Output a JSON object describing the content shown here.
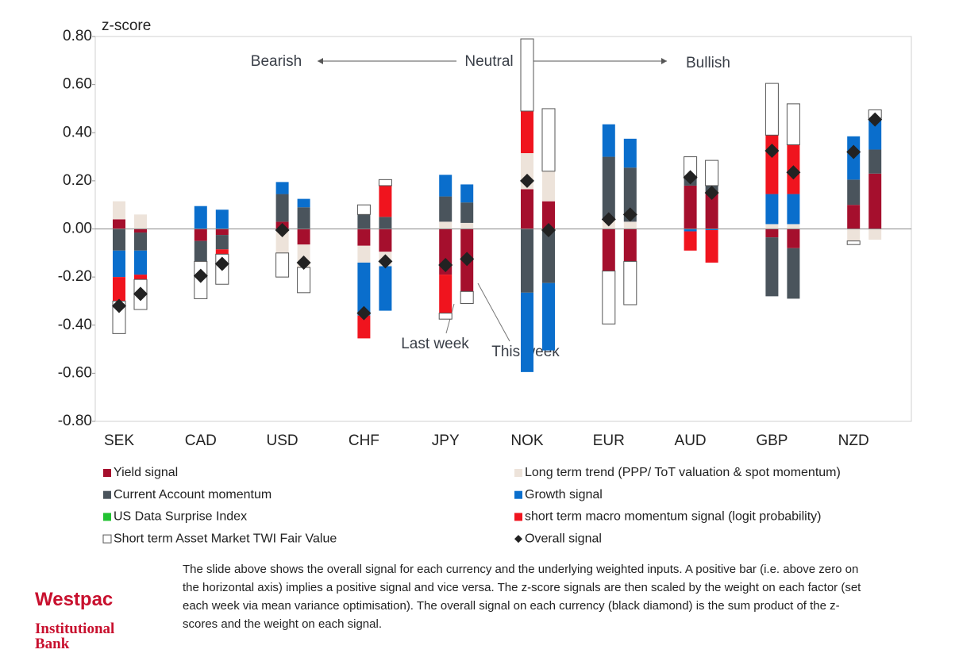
{
  "chart_data": {
    "type": "bar",
    "y_label": "z-score",
    "categories": [
      "SEK",
      "CAD",
      "USD",
      "CHF",
      "JPY",
      "NOK",
      "EUR",
      "AUD",
      "GBP",
      "NZD"
    ],
    "ylim": [
      -0.8,
      0.8
    ],
    "yticks": [
      {
        "value": 0.8,
        "label": "0.80"
      },
      {
        "value": 0.6,
        "label": "0.60"
      },
      {
        "value": 0.4,
        "label": "0.40"
      },
      {
        "value": 0.2,
        "label": "0.20"
      },
      {
        "value": 0,
        "label": "0.00"
      },
      {
        "value": -0.2,
        "label": "-0.20"
      },
      {
        "value": -0.4,
        "label": "-0.40"
      },
      {
        "value": -0.6,
        "label": "-0.60"
      },
      {
        "value": -0.8,
        "label": "-0.80"
      }
    ],
    "annotations": {
      "bearish": "Bearish",
      "neutral": "Neutral",
      "bullish": "Bullish",
      "last_week": "Last week",
      "this_week": "This week"
    },
    "series": [
      {
        "name": "Yield signal",
        "color": "#a50f2d",
        "values": [
          [
            0.04,
            -0.015
          ],
          [
            -0.05,
            -0.025
          ],
          [
            0.03,
            -0.065
          ],
          [
            -0.07,
            -0.095
          ],
          [
            -0.19,
            -0.26
          ],
          [
            0.165,
            0.115
          ],
          [
            -0.175,
            -0.135
          ],
          [
            0.18,
            0.155
          ],
          [
            -0.035,
            -0.08
          ],
          [
            0.1,
            0.23
          ]
        ]
      },
      {
        "name": "Long term trend (PPP/ ToT valuation & spot momentum)",
        "color": "#ede3da",
        "values": [
          [
            0.075,
            0.06
          ],
          [
            0,
            0
          ],
          [
            -0.1,
            -0.095
          ],
          [
            -0.07,
            -0.06
          ],
          [
            0.03,
            0.025
          ],
          [
            0.15,
            0.125
          ],
          [
            0.04,
            0.03
          ],
          [
            0,
            0
          ],
          [
            0.02,
            0.02
          ],
          [
            -0.05,
            -0.045
          ]
        ]
      },
      {
        "name": "Current Account momentum",
        "color": "#4a545c",
        "values": [
          [
            -0.09,
            -0.075
          ],
          [
            -0.085,
            -0.06
          ],
          [
            0.115,
            0.09
          ],
          [
            0.06,
            0.05
          ],
          [
            0.105,
            0.085
          ],
          [
            -0.265,
            -0.225
          ],
          [
            0.26,
            0.225
          ],
          [
            0.03,
            0.025
          ],
          [
            -0.245,
            -0.21
          ],
          [
            0.105,
            0.1
          ]
        ]
      },
      {
        "name": "Growth signal",
        "color": "#0a6ecc",
        "values": [
          [
            -0.11,
            -0.1
          ],
          [
            0.095,
            0.08
          ],
          [
            0.05,
            0.035
          ],
          [
            -0.22,
            -0.185
          ],
          [
            0.09,
            0.075
          ],
          [
            -0.33,
            -0.28
          ],
          [
            0.135,
            0.12
          ],
          [
            -0.01,
            -0.005
          ],
          [
            0.125,
            0.125
          ],
          [
            0.18,
            0.13
          ]
        ]
      },
      {
        "name": "US Data Surprise Index",
        "color": "#22c232",
        "values": [
          [
            0,
            0
          ],
          [
            0,
            0
          ],
          [
            0,
            0
          ],
          [
            0,
            0
          ],
          [
            0,
            0
          ],
          [
            0,
            0
          ],
          [
            0,
            0
          ],
          [
            0,
            0
          ],
          [
            0,
            0
          ],
          [
            0,
            0
          ]
        ]
      },
      {
        "name": "short term macro momentum signal (logit probability)",
        "color": "#f0141e",
        "values": [
          [
            -0.1,
            -0.02
          ],
          [
            0,
            -0.02
          ],
          [
            0,
            0
          ],
          [
            -0.095,
            0.13
          ],
          [
            -0.16,
            0
          ],
          [
            0.175,
            0
          ],
          [
            0,
            0
          ],
          [
            -0.08,
            -0.135
          ],
          [
            0.245,
            0.205
          ],
          [
            0,
            0
          ]
        ]
      },
      {
        "name": "Short term Asset Market TWI Fair Value",
        "color": "#ffffff",
        "values": [
          [
            -0.135,
            -0.125
          ],
          [
            -0.155,
            -0.125
          ],
          [
            -0.1,
            -0.105
          ],
          [
            0.04,
            0.025
          ],
          [
            -0.025,
            -0.05
          ],
          [
            0.3,
            0.26
          ],
          [
            -0.22,
            -0.18
          ],
          [
            0.09,
            0.105
          ],
          [
            0.215,
            0.17
          ],
          [
            -0.015,
            0.035
          ]
        ]
      }
    ],
    "overall": {
      "name": "Overall signal",
      "color": "#222222",
      "values": [
        [
          -0.32,
          -0.27
        ],
        [
          -0.195,
          -0.145
        ],
        [
          -0.005,
          -0.14
        ],
        [
          -0.35,
          -0.135
        ],
        [
          -0.15,
          -0.125
        ],
        [
          0.2,
          -0.005
        ],
        [
          0.04,
          0.06
        ],
        [
          0.215,
          0.15
        ],
        [
          0.325,
          0.235
        ],
        [
          0.32,
          0.455
        ]
      ]
    }
  },
  "footnote": "The slide above shows the overall signal for each currency and the underlying weighted inputs. A positive bar (i.e. above zero on the horizontal axis) implies a positive signal and vice versa. The z-score signals are then scaled by the weight on each factor (set each week via mean variance optimisation). The overall signal on each currency (black diamond) is the sum product of the z-scores and the weight on each signal.",
  "logo": {
    "brand": "Westpac",
    "line1": "Institutional",
    "line2": "Bank"
  }
}
